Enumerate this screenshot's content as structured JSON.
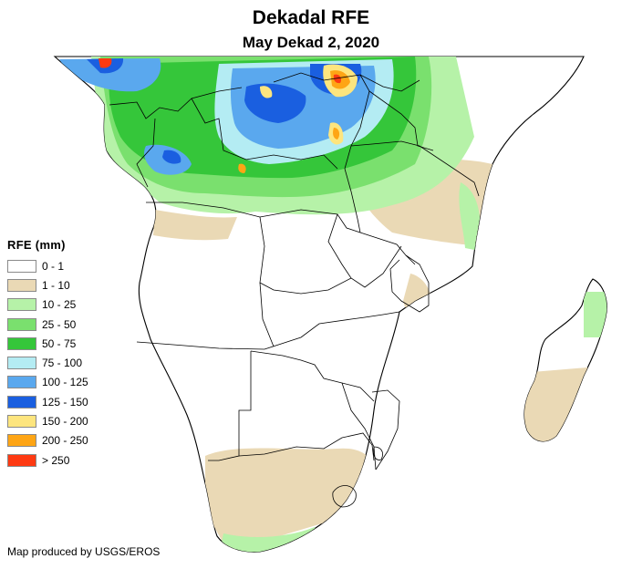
{
  "title": "Dekadal RFE",
  "subtitle": "May Dekad 2, 2020",
  "legend": {
    "title": "RFE (mm)",
    "items": [
      {
        "label": "0 - 1",
        "color": "#ffffff"
      },
      {
        "label": "1 - 10",
        "color": "#ead9b5"
      },
      {
        "label": "10 - 25",
        "color": "#b6f2a8"
      },
      {
        "label": "25 - 50",
        "color": "#7ae06e"
      },
      {
        "label": "50 - 75",
        "color": "#35c63a"
      },
      {
        "label": "75 - 100",
        "color": "#b4ecf3"
      },
      {
        "label": "100 - 125",
        "color": "#5aa8ee"
      },
      {
        "label": "125 - 150",
        "color": "#1a5fe0"
      },
      {
        "label": "150 - 200",
        "color": "#fde57e"
      },
      {
        "label": "200 - 250",
        "color": "#fea515"
      },
      {
        "label": "> 250",
        "color": "#fe3a12"
      }
    ]
  },
  "credit": "Map produced by USGS/EROS"
}
